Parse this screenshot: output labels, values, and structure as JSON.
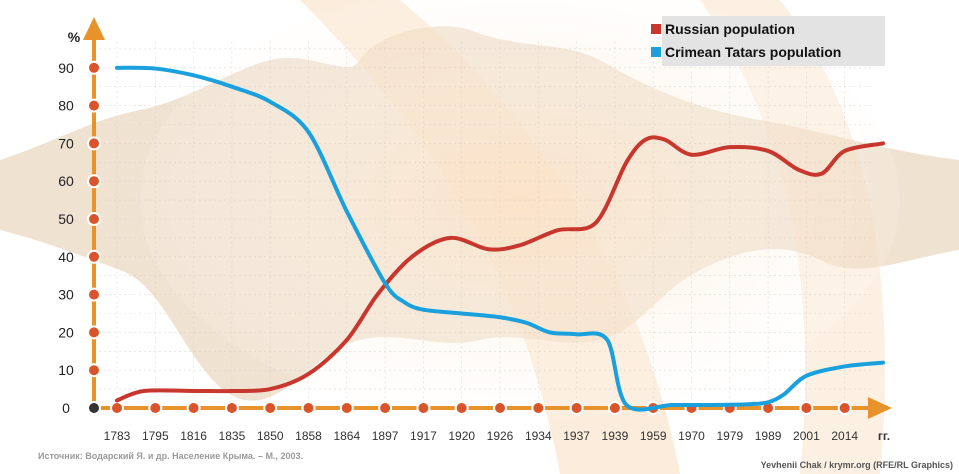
{
  "chart_data": {
    "type": "line",
    "ylabel": "%",
    "xlabel": "гг.",
    "ylim": [
      0,
      100
    ],
    "y_ticks": [
      0,
      10,
      20,
      30,
      40,
      50,
      60,
      70,
      80,
      90
    ],
    "categories": [
      "1783",
      "1795",
      "1816",
      "1835",
      "1850",
      "1858",
      "1864",
      "1897",
      "1917",
      "1920",
      "1926",
      "1934",
      "1937",
      "1939",
      "1959",
      "1970",
      "1979",
      "1989",
      "2001",
      "2014"
    ],
    "grid": true,
    "legend_position": "top-right",
    "series": [
      {
        "name": "Russian population",
        "color": "#c8372d",
        "points": [
          [
            0,
            2
          ],
          [
            0.7,
            4.5
          ],
          [
            2,
            4.5
          ],
          [
            3,
            4.5
          ],
          [
            4,
            5
          ],
          [
            5,
            9
          ],
          [
            6,
            18
          ],
          [
            6.8,
            30
          ],
          [
            7.7,
            40
          ],
          [
            8.7,
            45
          ],
          [
            9.7,
            42
          ],
          [
            10.5,
            43
          ],
          [
            11.5,
            47
          ],
          [
            12.5,
            49
          ],
          [
            13.3,
            65
          ],
          [
            13.8,
            71
          ],
          [
            14.3,
            71
          ],
          [
            15,
            67
          ],
          [
            16,
            69
          ],
          [
            17,
            68
          ],
          [
            17.8,
            63
          ],
          [
            18.4,
            62
          ],
          [
            19,
            68
          ],
          [
            20,
            70
          ]
        ]
      },
      {
        "name": "Crimean Tatars population",
        "color": "#1aa0dc",
        "points": [
          [
            0,
            90
          ],
          [
            1,
            89.8
          ],
          [
            2,
            88
          ],
          [
            3,
            85
          ],
          [
            4,
            81
          ],
          [
            5,
            73
          ],
          [
            6,
            52
          ],
          [
            7,
            33
          ],
          [
            7.5,
            28
          ],
          [
            8,
            26
          ],
          [
            9,
            25
          ],
          [
            10,
            24
          ],
          [
            10.7,
            22.5
          ],
          [
            11.3,
            20
          ],
          [
            12,
            19.5
          ],
          [
            12.8,
            18
          ],
          [
            13.3,
            0.8
          ],
          [
            14.5,
            0.8
          ],
          [
            15.5,
            0.8
          ],
          [
            16.5,
            1
          ],
          [
            17,
            1.5
          ],
          [
            17.4,
            3.5
          ],
          [
            18,
            8.5
          ],
          [
            19,
            11
          ],
          [
            20,
            12
          ]
        ]
      }
    ],
    "axis_color": "#e8922c",
    "dot_fill": "#d9542a"
  },
  "legend": {
    "items": [
      {
        "label": "Russian population",
        "color": "#c8372d"
      },
      {
        "label": "Crimean Tatars population",
        "color": "#1aa0dc"
      }
    ]
  },
  "source": "Источник: Водарский Я. и др. Население Крыма. – М., 2003.",
  "credit": "Yevhenii Chak / krymr.org (RFE/RL Graphics)"
}
